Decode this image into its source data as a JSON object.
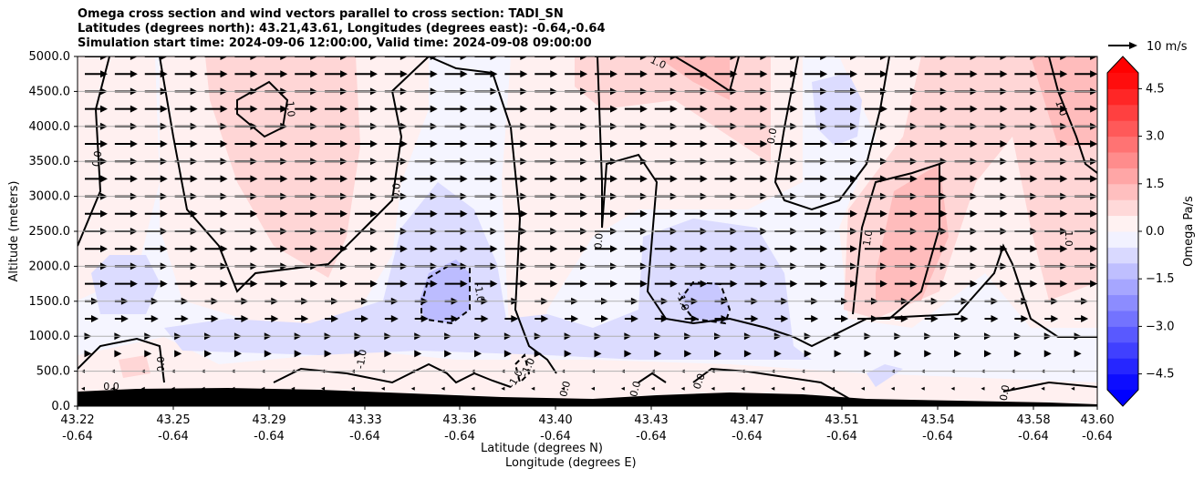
{
  "title_lines": [
    "Omega cross section and wind vectors parallel to cross section: TADI_SN",
    "Latitudes (degrees north): 43.21,43.61, Longitudes (degrees east): -0.64,-0.64",
    "Simulation start time: 2024-09-06 12:00:00, Valid time: 2024-09-08 09:00:00"
  ],
  "chart_data": {
    "type": "contour",
    "ylabel": "Altitude (meters)",
    "xlabel_line1": "Latitude (degrees N)",
    "xlabel_line2": "Longitude (degrees E)",
    "ylim": [
      0,
      5000
    ],
    "y_ticks": [
      "0.0",
      "500.0",
      "1000.0",
      "1500.0",
      "2000.0",
      "2500.0",
      "3000.0",
      "3500.0",
      "4000.0",
      "4500.0",
      "5000.0"
    ],
    "x_ticks": [
      {
        "lat": "43.22",
        "lon": "-0.64"
      },
      {
        "lat": "43.25",
        "lon": "-0.64"
      },
      {
        "lat": "43.29",
        "lon": "-0.64"
      },
      {
        "lat": "43.33",
        "lon": "-0.64"
      },
      {
        "lat": "43.36",
        "lon": "-0.64"
      },
      {
        "lat": "43.40",
        "lon": "-0.64"
      },
      {
        "lat": "43.43",
        "lon": "-0.64"
      },
      {
        "lat": "43.47",
        "lon": "-0.64"
      },
      {
        "lat": "43.51",
        "lon": "-0.64"
      },
      {
        "lat": "43.54",
        "lon": "-0.64"
      },
      {
        "lat": "43.58",
        "lon": "-0.64"
      },
      {
        "lat": "43.60",
        "lon": "-0.64"
      }
    ],
    "grid": "horizontal",
    "contour_labels": [
      "0.0",
      "0.0",
      "0.0",
      "0.0",
      "0.0",
      "0.0",
      "0.0",
      "0.0",
      "0.0",
      "0.0",
      "1.0",
      "1.0",
      "1.0",
      "1.0",
      "1.0",
      "-1.0",
      "-1.0",
      "-1.0",
      "-1.0",
      "-1.0"
    ],
    "colorbar": {
      "label": "Omega Pa/s",
      "range": [
        -5,
        5
      ],
      "ticks": [
        "4.5",
        "3.0",
        "1.5",
        "0.0",
        "−1.5",
        "−3.0",
        "−4.5"
      ],
      "extend": "both"
    },
    "quiver_key": "10 m/s",
    "wind_vectors": [
      {
        "alt_range": [
          1750,
          5000
        ],
        "u": 10
      },
      {
        "alt_range": [
          1250,
          1500
        ],
        "u": 6
      },
      {
        "alt_range": [
          750,
          1000
        ],
        "u": 3
      },
      {
        "alt_range": [
          250,
          500
        ],
        "u": -1
      }
    ],
    "colors": {
      "positive": "#ff0000",
      "negative": "#0000ff",
      "terrain": "#000000"
    }
  }
}
